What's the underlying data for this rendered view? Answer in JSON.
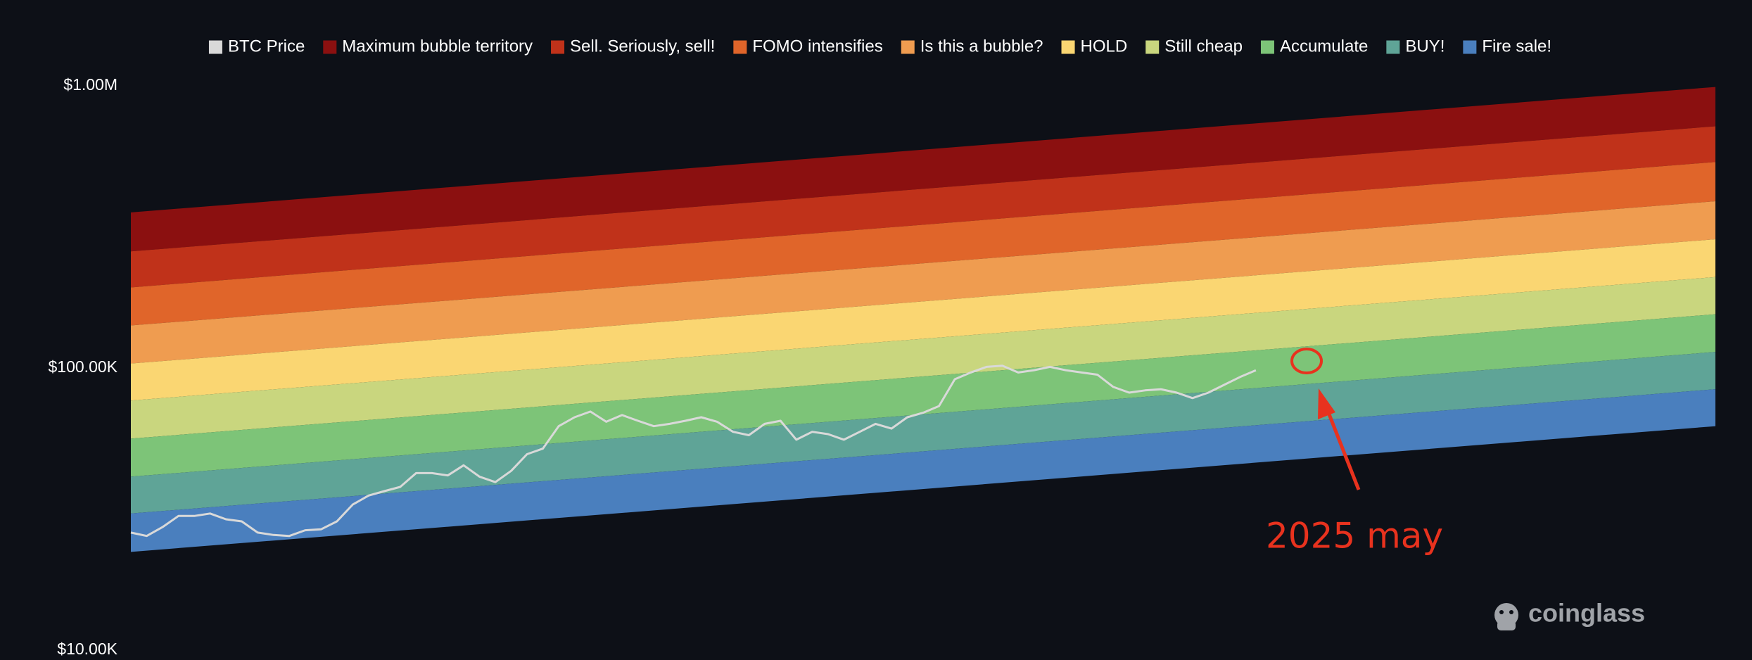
{
  "chart_data": {
    "type": "line",
    "log_scale": true,
    "ylim": [
      10000,
      1000000
    ],
    "yticks": [
      {
        "value": 1000000,
        "label": "$1.00M"
      },
      {
        "value": 100000,
        "label": "$100.00K"
      },
      {
        "value": 10000,
        "label": "$10.00K"
      }
    ],
    "series": [
      {
        "name": "BTC Price",
        "color": "#d9d9d9",
        "values": [
          26100,
          25400,
          27300,
          29900,
          29900,
          30500,
          29100,
          28600,
          26100,
          25600,
          25400,
          26600,
          26800,
          28600,
          32800,
          35300,
          36600,
          37900,
          42400,
          42400,
          41600,
          45200,
          41200,
          39400,
          43200,
          49500,
          51800,
          62200,
          66900,
          70100,
          64500,
          68100,
          65000,
          62200,
          63400,
          65000,
          66900,
          64500,
          59400,
          57800,
          63400,
          65000,
          55700,
          59400,
          58300,
          55700,
          59400,
          63400,
          61000,
          66900,
          69400,
          73300,
          91200,
          96400,
          100900,
          101900,
          96400,
          98200,
          100900,
          98200,
          96400,
          94700,
          85700,
          81800,
          83300,
          84100,
          81800,
          78200,
          81800,
          87200,
          92900,
          98200,
          null,
          null,
          null,
          null,
          null,
          null,
          null,
          null,
          null,
          null,
          null,
          null,
          null,
          null,
          null,
          null,
          null,
          null,
          null,
          null,
          null,
          null,
          null,
          null,
          null,
          null,
          null,
          null,
          null
        ]
      }
    ],
    "bands": [
      {
        "name": "Maximum bubble territory",
        "color": "#8b1010",
        "low": [
          259000,
          719000
        ],
        "high": [
          356000,
          991000
        ]
      },
      {
        "name": "Sell. Seriously, sell!",
        "color": "#c0321a",
        "low": [
          193000,
          537000
        ],
        "high": [
          259000,
          719000
        ]
      },
      {
        "name": "FOMO intensifies",
        "color": "#e0652a",
        "low": [
          141500,
          390000
        ],
        "high": [
          193000,
          537000
        ]
      },
      {
        "name": "Is this a bubble?",
        "color": "#ef9c50",
        "low": [
          103700,
          286000
        ],
        "high": [
          141500,
          390000
        ]
      },
      {
        "name": "HOLD",
        "color": "#fad672",
        "low": [
          76700,
          210000
        ],
        "high": [
          103700,
          286000
        ]
      },
      {
        "name": "Still cheap",
        "color": "#c9d67e",
        "low": [
          56200,
          155000
        ],
        "high": [
          76700,
          210000
        ]
      },
      {
        "name": "Accumulate",
        "color": "#7dc478",
        "low": [
          41200,
          114000
        ],
        "high": [
          56200,
          155000
        ]
      },
      {
        "name": "BUY!",
        "color": "#5fa497",
        "low": [
          30500,
          84100
        ],
        "high": [
          41200,
          114000
        ]
      },
      {
        "name": "Fire sale!",
        "color": "#4a7fbe",
        "low": [
          22300,
          62200
        ],
        "high": [
          30500,
          84100
        ]
      }
    ],
    "annotation": "2025 may",
    "logo": "coinglass"
  }
}
